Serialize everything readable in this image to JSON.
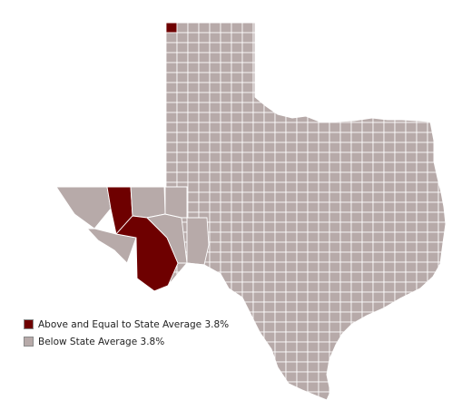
{
  "map": {
    "colors": {
      "above": "#6e0000",
      "below": "#b7aaa9",
      "border": "#ffffff"
    }
  },
  "legend": {
    "items": [
      {
        "label": "Above and Equal to State Average 3.8%",
        "category": "above"
      },
      {
        "label": "Below State Average 3.8%",
        "category": "below"
      }
    ]
  }
}
